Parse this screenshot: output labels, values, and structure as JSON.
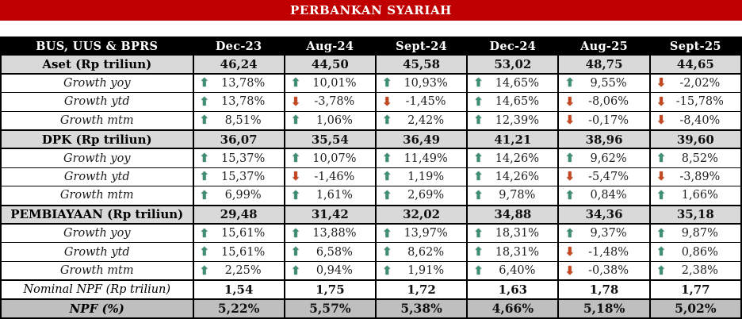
{
  "title": "PERBANKAN SYARIAH",
  "colors": {
    "title_bar_bg": "#C00000",
    "header_bg": "#000000",
    "section_row_bg": "#D9D9D9",
    "npf_row_bg": "#BFBFBF",
    "up_arrow": "#3E8E75",
    "down_arrow": "#C4471F"
  },
  "icons": {
    "up": "⬆",
    "down": "⬇"
  },
  "table": {
    "header": [
      "BUS, UUS & BPRS",
      "Dec-23",
      "Aug-24",
      "Sept-24",
      "Dec-24",
      "Aug-25",
      "Sept-25"
    ],
    "rows": [
      {
        "type": "section",
        "label": "Aset (Rp triliun)",
        "values": [
          "46,24",
          "44,50",
          "45,58",
          "53,02",
          "48,75",
          "44,65"
        ]
      },
      {
        "type": "growth",
        "label": "Growth yoy",
        "values": [
          {
            "dir": "up",
            "text": "13,78%"
          },
          {
            "dir": "up",
            "text": "10,01%"
          },
          {
            "dir": "up",
            "text": "10,93%"
          },
          {
            "dir": "up",
            "text": "14,65%"
          },
          {
            "dir": "up",
            "text": "9,55%"
          },
          {
            "dir": "down",
            "text": "-2,02%"
          }
        ]
      },
      {
        "type": "growth",
        "label": "Growth ytd",
        "values": [
          {
            "dir": "up",
            "text": "13,78%"
          },
          {
            "dir": "down",
            "text": "-3,78%"
          },
          {
            "dir": "down",
            "text": "-1,45%"
          },
          {
            "dir": "up",
            "text": "14,65%"
          },
          {
            "dir": "down",
            "text": "-8,06%"
          },
          {
            "dir": "down",
            "text": "-15,78%"
          }
        ]
      },
      {
        "type": "growth",
        "label": "Growth mtm",
        "values": [
          {
            "dir": "up",
            "text": "8,51%"
          },
          {
            "dir": "up",
            "text": "1,06%"
          },
          {
            "dir": "up",
            "text": "2,42%"
          },
          {
            "dir": "up",
            "text": "12,39%"
          },
          {
            "dir": "down",
            "text": "-0,17%"
          },
          {
            "dir": "down",
            "text": "-8,40%"
          }
        ]
      },
      {
        "type": "section",
        "label": "DPK (Rp triliun)",
        "values": [
          "36,07",
          "35,54",
          "36,49",
          "41,21",
          "38,96",
          "39,60"
        ]
      },
      {
        "type": "growth",
        "label": "Growth yoy",
        "values": [
          {
            "dir": "up",
            "text": "15,37%"
          },
          {
            "dir": "up",
            "text": "10,07%"
          },
          {
            "dir": "up",
            "text": "11,49%"
          },
          {
            "dir": "up",
            "text": "14,26%"
          },
          {
            "dir": "up",
            "text": "9,62%"
          },
          {
            "dir": "up",
            "text": "8,52%"
          }
        ]
      },
      {
        "type": "growth",
        "label": "Growth ytd",
        "values": [
          {
            "dir": "up",
            "text": "15,37%"
          },
          {
            "dir": "down",
            "text": "-1,46%"
          },
          {
            "dir": "up",
            "text": "1,19%"
          },
          {
            "dir": "up",
            "text": "14,26%"
          },
          {
            "dir": "down",
            "text": "-5,47%"
          },
          {
            "dir": "down",
            "text": "-3,89%"
          }
        ]
      },
      {
        "type": "growth",
        "label": "Growth mtm",
        "values": [
          {
            "dir": "up",
            "text": "6,99%"
          },
          {
            "dir": "up",
            "text": "1,61%"
          },
          {
            "dir": "up",
            "text": "2,69%"
          },
          {
            "dir": "up",
            "text": "9,78%"
          },
          {
            "dir": "up",
            "text": "0,84%"
          },
          {
            "dir": "up",
            "text": "1,66%"
          }
        ]
      },
      {
        "type": "section",
        "label": "PEMBIAYAAN (Rp triliun)",
        "values": [
          "29,48",
          "31,42",
          "32,02",
          "34,88",
          "34,36",
          "35,18"
        ]
      },
      {
        "type": "growth",
        "label": "Growth yoy",
        "values": [
          {
            "dir": "up",
            "text": "15,61%"
          },
          {
            "dir": "up",
            "text": "13,88%"
          },
          {
            "dir": "up",
            "text": "13,97%"
          },
          {
            "dir": "up",
            "text": "18,31%"
          },
          {
            "dir": "up",
            "text": "9,37%"
          },
          {
            "dir": "up",
            "text": "9,87%"
          }
        ]
      },
      {
        "type": "growth",
        "label": "Growth ytd",
        "values": [
          {
            "dir": "up",
            "text": "15,61%"
          },
          {
            "dir": "up",
            "text": "6,58%"
          },
          {
            "dir": "up",
            "text": "8,62%"
          },
          {
            "dir": "up",
            "text": "18,31%"
          },
          {
            "dir": "down",
            "text": "-1,48%"
          },
          {
            "dir": "up",
            "text": "0,86%"
          }
        ]
      },
      {
        "type": "growth",
        "label": "Growth mtm",
        "values": [
          {
            "dir": "up",
            "text": "2,25%"
          },
          {
            "dir": "up",
            "text": "0,94%"
          },
          {
            "dir": "up",
            "text": "1,91%"
          },
          {
            "dir": "up",
            "text": "6,40%"
          },
          {
            "dir": "down",
            "text": "-0,38%"
          },
          {
            "dir": "up",
            "text": "2,38%"
          }
        ]
      },
      {
        "type": "nominal",
        "label": "Nominal NPF (Rp triliun)",
        "values": [
          "1,54",
          "1,75",
          "1,72",
          "1,63",
          "1,78",
          "1,77"
        ]
      },
      {
        "type": "npf",
        "label": "NPF (%)",
        "values": [
          "5,22%",
          "5,57%",
          "5,38%",
          "4,66%",
          "5,18%",
          "5,02%"
        ]
      }
    ]
  }
}
